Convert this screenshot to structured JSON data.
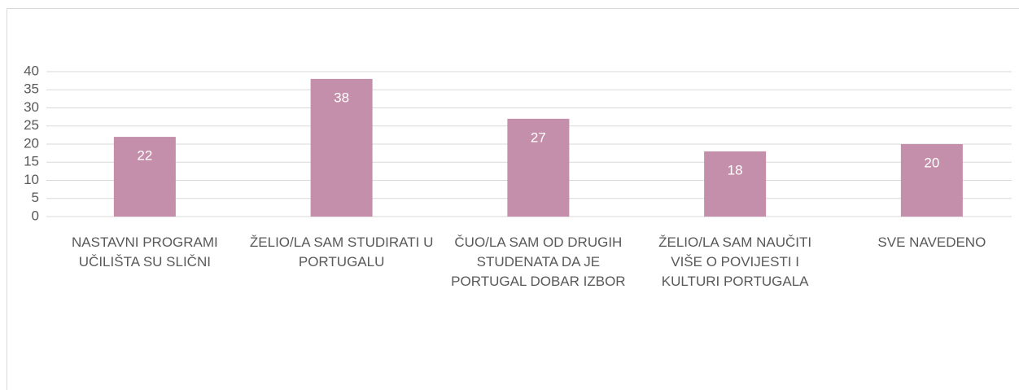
{
  "chart_data": {
    "type": "bar",
    "categories": [
      "NASTAVNI PROGRAMI UČILIŠTA SU SLIČNI",
      "ŽELIO/LA SAM STUDIRATI U PORTUGALU",
      "ČUO/LA SAM OD DRUGIH STUDENATA DA JE PORTUGAL DOBAR IZBOR",
      "ŽELIO/LA SAM NAUČITI VIŠE O POVIJESTI I KULTURI PORTUGALA",
      "SVE NAVEDENO"
    ],
    "values": [
      22,
      38,
      27,
      18,
      20
    ],
    "color": "#c48faa",
    "ylim": [
      0,
      40
    ],
    "yticks": [
      0,
      5,
      10,
      15,
      20,
      25,
      30,
      35,
      40
    ],
    "grid": true
  }
}
